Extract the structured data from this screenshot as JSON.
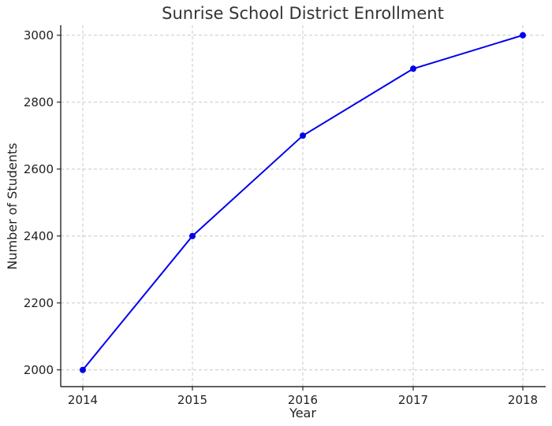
{
  "chart_data": {
    "type": "line",
    "title": "Sunrise School District Enrollment",
    "xlabel": "Year",
    "ylabel": "Number of Students",
    "categories": [
      "2014",
      "2015",
      "2016",
      "2017",
      "2018"
    ],
    "yticks": [
      "2000",
      "2200",
      "2400",
      "2600",
      "2800",
      "3000"
    ],
    "series": [
      {
        "values": [
          2000,
          2400,
          2700,
          2900,
          3000
        ],
        "color": "#0000ee",
        "marker": "circle"
      }
    ],
    "ylim": [
      1950,
      3030
    ],
    "grid": true,
    "grid_style": "dashed"
  }
}
